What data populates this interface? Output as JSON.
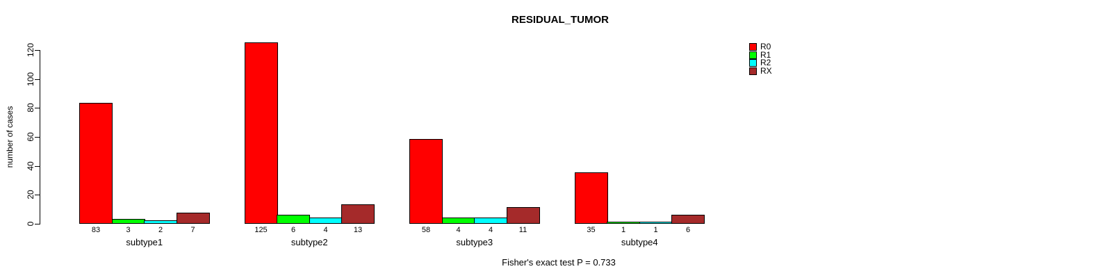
{
  "chart_data": {
    "type": "bar",
    "title": "RESIDUAL_TUMOR",
    "ylabel": "number of cases",
    "xlabel": "",
    "categories": [
      "subtype1",
      "subtype2",
      "subtype3",
      "subtype4"
    ],
    "series": [
      {
        "name": "R0",
        "color": "#FF0000",
        "values": [
          83,
          125,
          58,
          35
        ]
      },
      {
        "name": "R1",
        "color": "#00FF00",
        "values": [
          3,
          6,
          4,
          1
        ]
      },
      {
        "name": "R2",
        "color": "#00FFFF",
        "values": [
          2,
          4,
          4,
          1
        ]
      },
      {
        "name": "RX",
        "color": "#A52A2A",
        "values": [
          7,
          13,
          11,
          6
        ]
      }
    ],
    "ylim": [
      0,
      120
    ],
    "yticks": [
      0,
      20,
      40,
      60,
      80,
      100,
      120
    ],
    "grid": false,
    "legend_position": "top-right",
    "bar_value_labels_shown": true,
    "footnote": "Fisher's exact test P = 0.733"
  }
}
